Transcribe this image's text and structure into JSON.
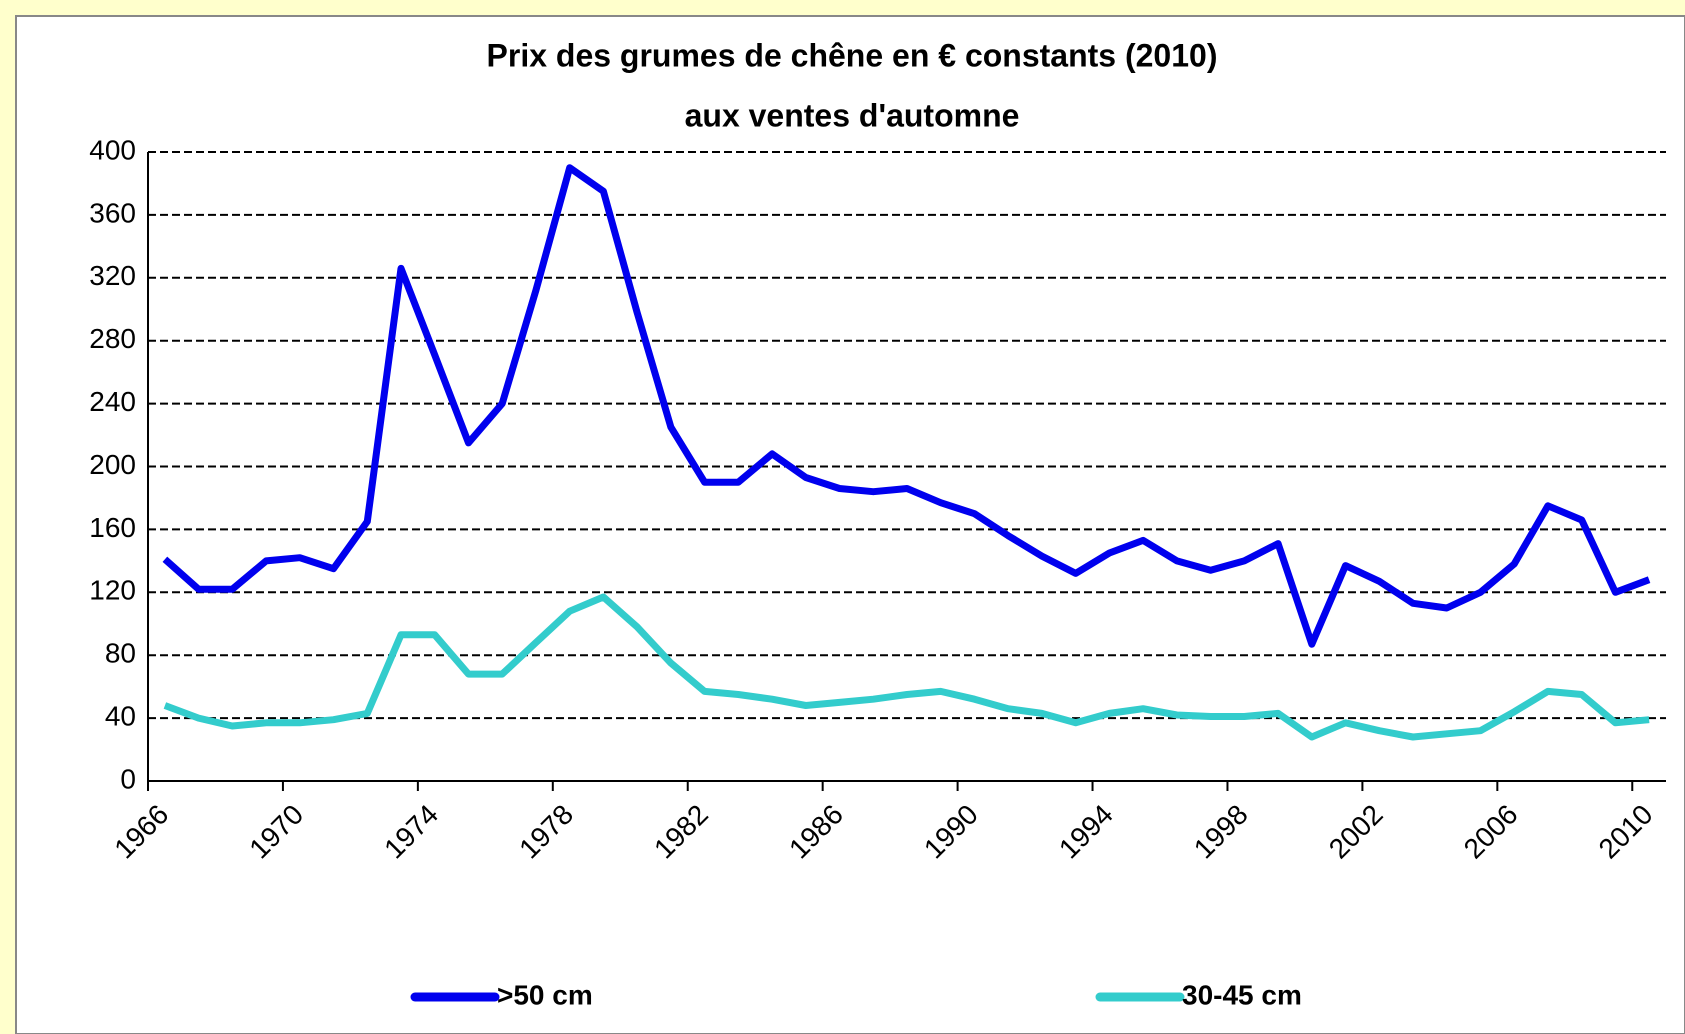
{
  "chart_data": {
    "type": "line",
    "title": "Prix des grumes de chêne en € constants (2010)",
    "subtitle": "aux ventes d'automne",
    "categories": [
      "1966",
      null,
      null,
      null,
      "1970",
      null,
      null,
      null,
      "1974",
      null,
      null,
      null,
      "1978",
      null,
      null,
      null,
      "1982",
      null,
      null,
      null,
      "1986",
      null,
      null,
      null,
      "1990",
      null,
      null,
      null,
      "1994",
      null,
      null,
      null,
      "1998",
      null,
      null,
      null,
      "2002",
      null,
      null,
      null,
      "2006",
      null,
      null,
      null,
      "2010"
    ],
    "series": [
      {
        "name": ">50 cm",
        "color": "#0000ee",
        "values": [
          141,
          122,
          122,
          140,
          142,
          135,
          165,
          326,
          271,
          215,
          240,
          312,
          390,
          375,
          298,
          225,
          190,
          190,
          208,
          193,
          186,
          184,
          186,
          177,
          170,
          156,
          143,
          132,
          145,
          153,
          140,
          134,
          140,
          151,
          87,
          137,
          127,
          113,
          110,
          120,
          138,
          175,
          166,
          120,
          128
        ]
      },
      {
        "name": "30-45 cm",
        "color": "#33cccc",
        "values": [
          48,
          40,
          35,
          37,
          37,
          39,
          43,
          93,
          93,
          68,
          68,
          88,
          108,
          117,
          98,
          75,
          57,
          55,
          52,
          48,
          50,
          52,
          55,
          57,
          52,
          46,
          43,
          37,
          43,
          46,
          42,
          41,
          41,
          43,
          28,
          37,
          32,
          28,
          30,
          32,
          44,
          57,
          55,
          37,
          39
        ]
      }
    ],
    "ylim": [
      0,
      400
    ],
    "yticks": [
      0,
      40,
      80,
      120,
      160,
      200,
      240,
      280,
      320,
      360,
      400
    ],
    "grid": true,
    "legend": "bottom"
  }
}
